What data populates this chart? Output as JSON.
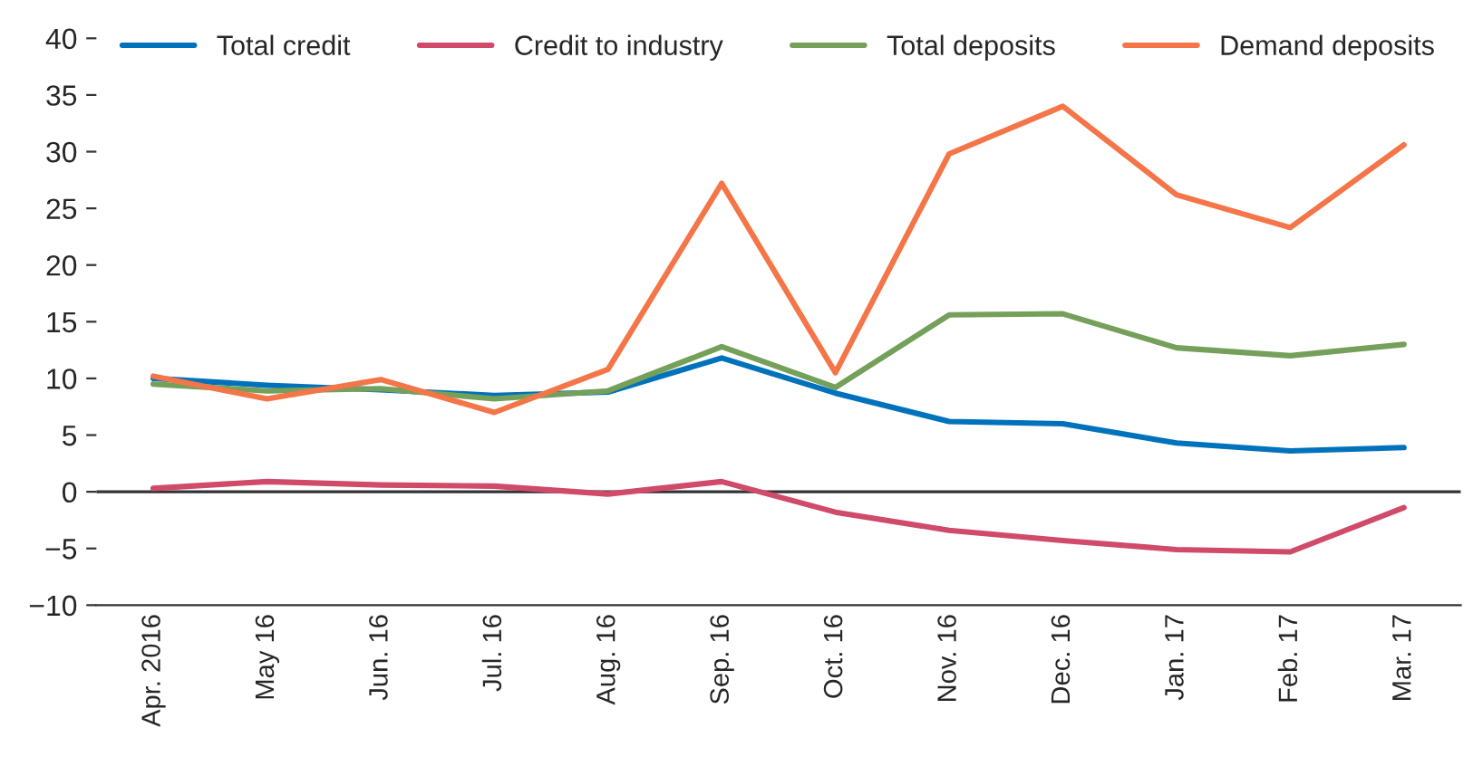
{
  "chart_data": {
    "type": "line",
    "categories": [
      "Apr. 2016",
      "May 16",
      "Jun. 16",
      "Jul. 16",
      "Aug. 16",
      "Sep. 16",
      "Oct. 16",
      "Nov. 16",
      "Dec. 16",
      "Jan. 17",
      "Feb. 17",
      "Mar. 17"
    ],
    "series": [
      {
        "name": "Total credit",
        "color": "#0072bc",
        "values": [
          10.0,
          9.4,
          9.0,
          8.5,
          8.8,
          11.8,
          8.7,
          6.2,
          6.0,
          4.3,
          3.6,
          3.9
        ]
      },
      {
        "name": "Credit to industry",
        "color": "#d04a6a",
        "values": [
          0.3,
          0.9,
          0.6,
          0.5,
          -0.2,
          0.9,
          -1.8,
          -3.4,
          -4.3,
          -5.1,
          -5.3,
          -1.4
        ]
      },
      {
        "name": "Total deposits",
        "color": "#74a05a",
        "values": [
          9.5,
          8.9,
          9.1,
          8.2,
          8.9,
          12.8,
          9.2,
          15.6,
          15.7,
          12.7,
          12.0,
          13.0
        ]
      },
      {
        "name": "Demand deposits",
        "color": "#f47548",
        "values": [
          10.2,
          8.2,
          9.9,
          7.0,
          10.8,
          27.2,
          10.5,
          29.8,
          34.0,
          26.2,
          23.3,
          30.6
        ]
      }
    ],
    "ylim": [
      -10,
      40
    ],
    "yticks": [
      {
        "value": -10,
        "label": "−10"
      },
      {
        "value": -5,
        "label": "−5"
      },
      0,
      5,
      10,
      15,
      20,
      25,
      30,
      35,
      40
    ],
    "ref_lines": [
      {
        "axis": "y",
        "value": 0,
        "color": "#333333"
      }
    ],
    "grid": false,
    "legend": "top",
    "marker": "none",
    "line_style": "solid"
  }
}
